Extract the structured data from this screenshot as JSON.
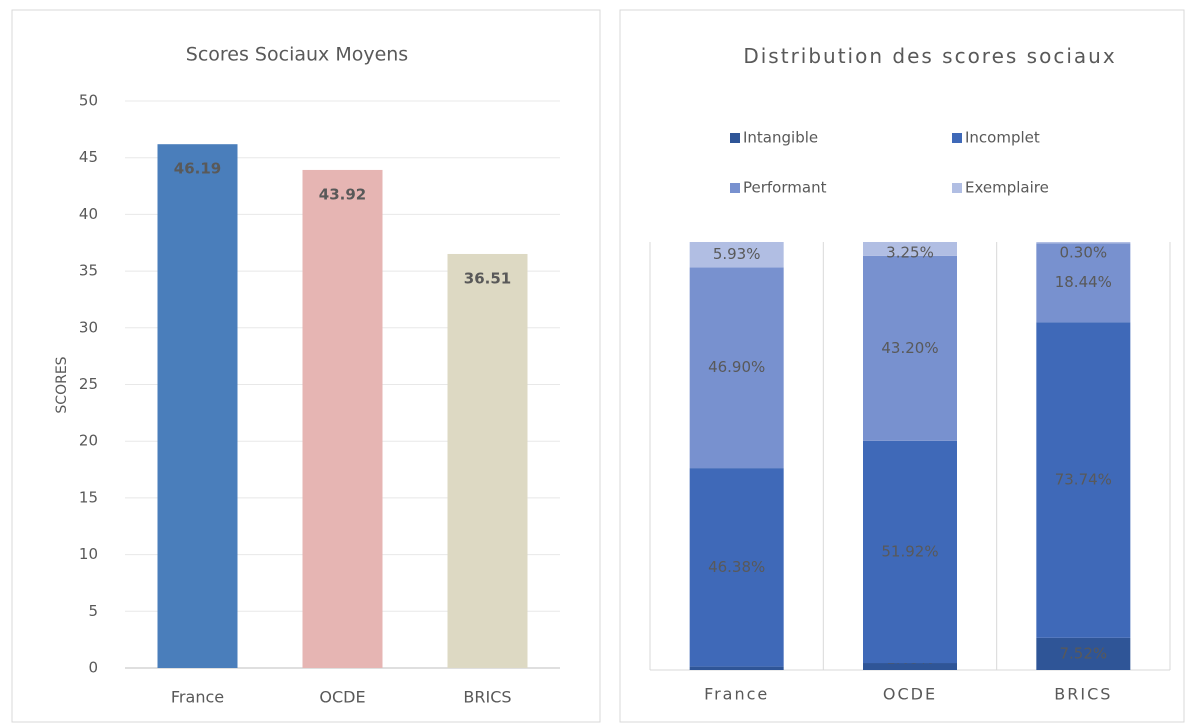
{
  "chart_data": [
    {
      "type": "bar",
      "title": "Scores Sociaux Moyens",
      "ylabel": "SCORES",
      "categories": [
        "France",
        "OCDE",
        "BRICS"
      ],
      "values": [
        46.19,
        43.92,
        36.51
      ],
      "colors": [
        "#4a7ebb",
        "#e6b5b3",
        "#ddd9c3"
      ],
      "ylim": [
        0,
        50
      ],
      "yticks": [
        0,
        5,
        10,
        15,
        20,
        25,
        30,
        35,
        40,
        45,
        50
      ],
      "grid": true
    },
    {
      "type": "stacked_bar",
      "title": "Distribution des scores sociaux",
      "categories": [
        "France",
        "OCDE",
        "BRICS"
      ],
      "ylim": [
        0,
        100
      ],
      "series": [
        {
          "name": "Intangible",
          "color": "#2f5597",
          "values": [
            0.79,
            1.63,
            7.52
          ],
          "value_labels": [
            "0.79%",
            "1.63%",
            "7.52%"
          ]
        },
        {
          "name": "Incomplet",
          "color": "#3f69b8",
          "values": [
            46.38,
            51.92,
            73.74
          ],
          "value_labels": [
            "46.38%",
            "51.92%",
            "73.74%"
          ]
        },
        {
          "name": "Performant",
          "color": "#7891cf",
          "values": [
            46.9,
            43.2,
            18.44
          ],
          "value_labels": [
            "46.90%",
            "43.20%",
            "18.44%"
          ]
        },
        {
          "name": "Exemplaire",
          "color": "#b1bee3",
          "values": [
            5.93,
            3.25,
            0.3
          ],
          "value_labels": [
            "5.93%",
            "3.25%",
            "0.30%"
          ]
        }
      ]
    }
  ]
}
